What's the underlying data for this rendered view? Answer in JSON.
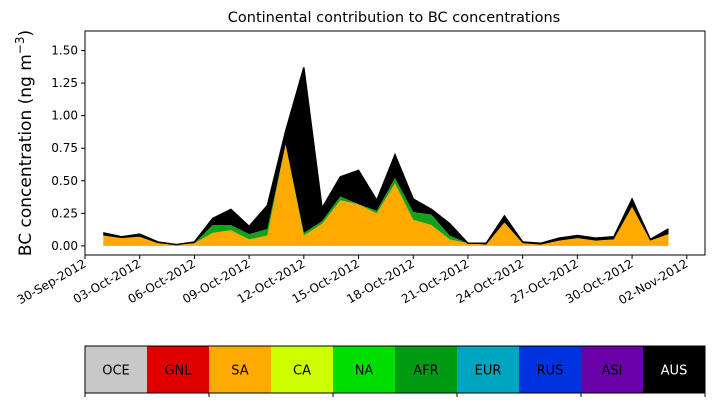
{
  "chart_data": {
    "type": "area",
    "title": "Continental contribution to BC concentrations",
    "ylabel_main": "BC concentration (ng m",
    "ylabel_sup": "−3",
    "ylabel_close": ")",
    "xlabel": "",
    "stacked": true,
    "x_range": [
      "2012-09-30",
      "2012-11-03"
    ],
    "ylim": [
      -0.07,
      1.65
    ],
    "yticks": [
      "0.00",
      "0.25",
      "0.50",
      "0.75",
      "1.00",
      "1.25",
      "1.50"
    ],
    "ytick_values": [
      0,
      0.25,
      0.5,
      0.75,
      1.0,
      1.25,
      1.5
    ],
    "xtick_labels": [
      "30-Sep-2012",
      "03-Oct-2012",
      "06-Oct-2012",
      "09-Oct-2012",
      "12-Oct-2012",
      "15-Oct-2012",
      "18-Oct-2012",
      "21-Oct-2012",
      "24-Oct-2012",
      "27-Oct-2012",
      "30-Oct-2012",
      "02-Nov-2012"
    ],
    "xtick_dates": [
      "2012-09-30",
      "2012-10-03",
      "2012-10-06",
      "2012-10-09",
      "2012-10-12",
      "2012-10-15",
      "2012-10-18",
      "2012-10-21",
      "2012-10-24",
      "2012-10-27",
      "2012-10-30",
      "2012-11-02"
    ],
    "x": [
      "2012-10-01",
      "2012-10-02",
      "2012-10-03",
      "2012-10-04",
      "2012-10-05",
      "2012-10-06",
      "2012-10-07",
      "2012-10-08",
      "2012-10-09",
      "2012-10-10",
      "2012-10-11",
      "2012-10-12",
      "2012-10-13",
      "2012-10-14",
      "2012-10-15",
      "2012-10-16",
      "2012-10-17",
      "2012-10-18",
      "2012-10-19",
      "2012-10-20",
      "2012-10-21",
      "2012-10-22",
      "2012-10-23",
      "2012-10-24",
      "2012-10-25",
      "2012-10-26",
      "2012-10-27",
      "2012-10-28",
      "2012-10-29",
      "2012-10-30",
      "2012-10-31",
      "2012-11-01"
    ],
    "series": [
      {
        "name": "SA",
        "color": "#ffaa00",
        "values": [
          0.08,
          0.06,
          0.07,
          0.02,
          0.01,
          0.02,
          0.1,
          0.12,
          0.05,
          0.08,
          0.78,
          0.08,
          0.17,
          0.35,
          0.32,
          0.25,
          0.48,
          0.2,
          0.16,
          0.05,
          0.02,
          0.01,
          0.18,
          0.02,
          0.01,
          0.04,
          0.06,
          0.04,
          0.05,
          0.3,
          0.04,
          0.09
        ]
      },
      {
        "name": "NA",
        "color": "#16a01c",
        "values": [
          0.0,
          0.0,
          0.0,
          0.0,
          0.0,
          0.0,
          0.06,
          0.04,
          0.04,
          0.05,
          0.0,
          0.02,
          0.02,
          0.03,
          0.0,
          0.02,
          0.04,
          0.06,
          0.08,
          0.03,
          0.0,
          0.0,
          0.0,
          0.0,
          0.0,
          0.0,
          0.0,
          0.0,
          0.0,
          0.0,
          0.0,
          0.0
        ]
      },
      {
        "name": "AUS",
        "color": "#000000",
        "values": [
          0.02,
          0.01,
          0.02,
          0.01,
          0.0,
          0.01,
          0.05,
          0.12,
          0.06,
          0.18,
          0.1,
          1.27,
          0.1,
          0.15,
          0.26,
          0.08,
          0.18,
          0.1,
          0.04,
          0.09,
          0.0,
          0.01,
          0.05,
          0.01,
          0.01,
          0.02,
          0.02,
          0.02,
          0.02,
          0.06,
          0.01,
          0.04
        ]
      }
    ],
    "colorbar": [
      {
        "label": "OCE",
        "color": "#c8c8c8",
        "text_color": "#000000"
      },
      {
        "label": "GNL",
        "color": "#e00000",
        "text_color": "#000000"
      },
      {
        "label": "SA",
        "color": "#ffaa00",
        "text_color": "#000000"
      },
      {
        "label": "CA",
        "color": "#ccff00",
        "text_color": "#000000"
      },
      {
        "label": "NA",
        "color": "#00dd00",
        "text_color": "#000000"
      },
      {
        "label": "AFR",
        "color": "#009a13",
        "text_color": "#000000"
      },
      {
        "label": "EUR",
        "color": "#00a5c0",
        "text_color": "#000000"
      },
      {
        "label": "RUS",
        "color": "#0033e0",
        "text_color": "#000000"
      },
      {
        "label": "ASI",
        "color": "#6a00a8",
        "text_color": "#000000"
      },
      {
        "label": "AUS",
        "color": "#000000",
        "text_color": "#ffffff"
      }
    ],
    "grid": false,
    "legend": "colorbar-bottom"
  }
}
